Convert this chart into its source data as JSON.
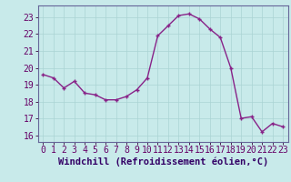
{
  "x": [
    0,
    1,
    2,
    3,
    4,
    5,
    6,
    7,
    8,
    9,
    10,
    11,
    12,
    13,
    14,
    15,
    16,
    17,
    18,
    19,
    20,
    21,
    22,
    23
  ],
  "y": [
    19.6,
    19.4,
    18.8,
    19.2,
    18.5,
    18.4,
    18.1,
    18.1,
    18.3,
    18.7,
    19.4,
    21.9,
    22.5,
    23.1,
    23.2,
    22.9,
    22.3,
    21.8,
    20.0,
    17.0,
    17.1,
    16.2,
    16.7,
    16.5
  ],
  "line_color": "#882288",
  "marker": "+",
  "marker_size": 3.5,
  "marker_lw": 1.0,
  "bg_color": "#c8eaea",
  "grid_color": "#aad4d4",
  "xlabel": "Windchill (Refroidissement éolien,°C)",
  "xlabel_fontsize": 7.5,
  "ylabel_ticks": [
    16,
    17,
    18,
    19,
    20,
    21,
    22,
    23
  ],
  "xtick_labels": [
    "0",
    "1",
    "2",
    "3",
    "4",
    "5",
    "6",
    "7",
    "8",
    "9",
    "10",
    "11",
    "12",
    "13",
    "14",
    "15",
    "16",
    "17",
    "18",
    "19",
    "20",
    "21",
    "22",
    "23"
  ],
  "xlim": [
    -0.5,
    23.5
  ],
  "ylim": [
    15.6,
    23.7
  ],
  "tick_fontsize": 7,
  "line_width": 1.0,
  "spine_color": "#666699"
}
